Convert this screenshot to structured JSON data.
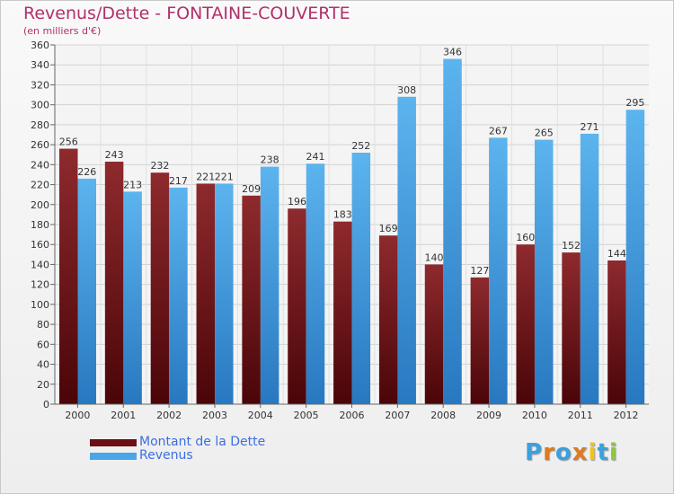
{
  "title": "Revenus/Dette - FONTAINE-COUVERTE",
  "subtitle": "(en milliers d'€)",
  "legend": [
    {
      "label": "Montant de la Dette",
      "color": "#6b0f14"
    },
    {
      "label": "Revenus",
      "color": "#4aa6e8"
    }
  ],
  "logo": {
    "letters": [
      "P",
      "r",
      "o",
      "x",
      "i",
      "t",
      "i"
    ],
    "colors": [
      "#3aa0de",
      "#e07a1e",
      "#3aa0de",
      "#e07a1e",
      "#f2c40f",
      "#3aa0de",
      "#8dc63f"
    ]
  },
  "chart_data": {
    "type": "bar",
    "categories": [
      "2000",
      "2001",
      "2002",
      "2003",
      "2004",
      "2005",
      "2006",
      "2007",
      "2008",
      "2009",
      "2010",
      "2011",
      "2012"
    ],
    "series": [
      {
        "name": "Montant de la Dette",
        "values": [
          256,
          243,
          232,
          221,
          209,
          196,
          183,
          169,
          140,
          127,
          160,
          152,
          144
        ],
        "color": "#6b0f14"
      },
      {
        "name": "Revenus",
        "values": [
          226,
          213,
          217,
          221,
          238,
          241,
          252,
          308,
          346,
          267,
          265,
          271,
          295
        ],
        "color": "#4aa6e8"
      }
    ],
    "yticks": [
      0,
      20,
      40,
      60,
      80,
      100,
      120,
      140,
      160,
      180,
      200,
      220,
      240,
      260,
      280,
      300,
      320,
      340,
      360
    ],
    "ylim": [
      0,
      360
    ],
    "grid": true
  }
}
